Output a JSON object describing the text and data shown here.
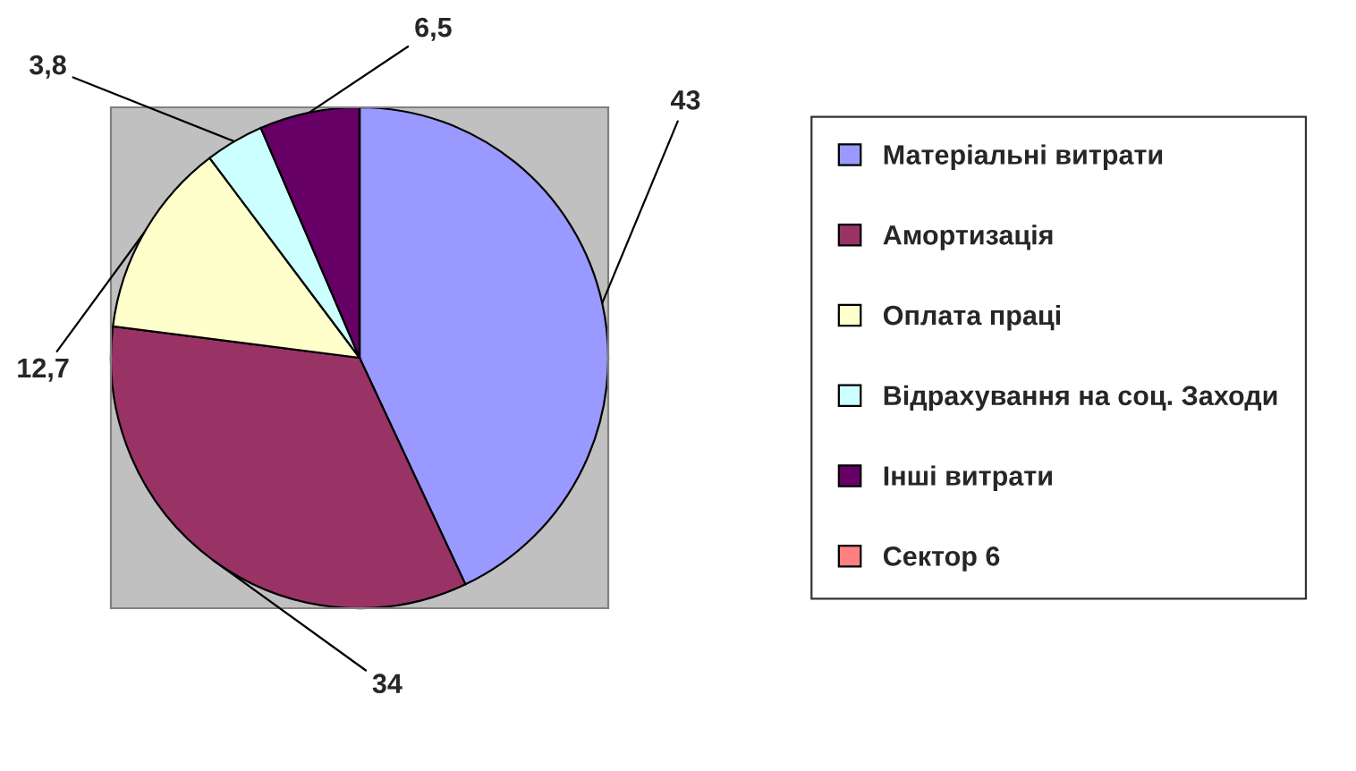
{
  "chart_data": {
    "type": "pie",
    "categories": [
      "Матеріальні витрати",
      "Амортизація",
      "Оплата праці",
      "Відрахування на соц. Заходи",
      "Інші витрати",
      "Сектор 6"
    ],
    "values": [
      43,
      34,
      12.7,
      3.8,
      6.5,
      0
    ],
    "colors": [
      "#9999ff",
      "#993366",
      "#ffffcc",
      "#ccffff",
      "#660066",
      "#ff8080"
    ],
    "value_labels": [
      "43",
      "34",
      "12,7",
      "3,8",
      "6,5",
      null
    ],
    "legend": "right"
  }
}
